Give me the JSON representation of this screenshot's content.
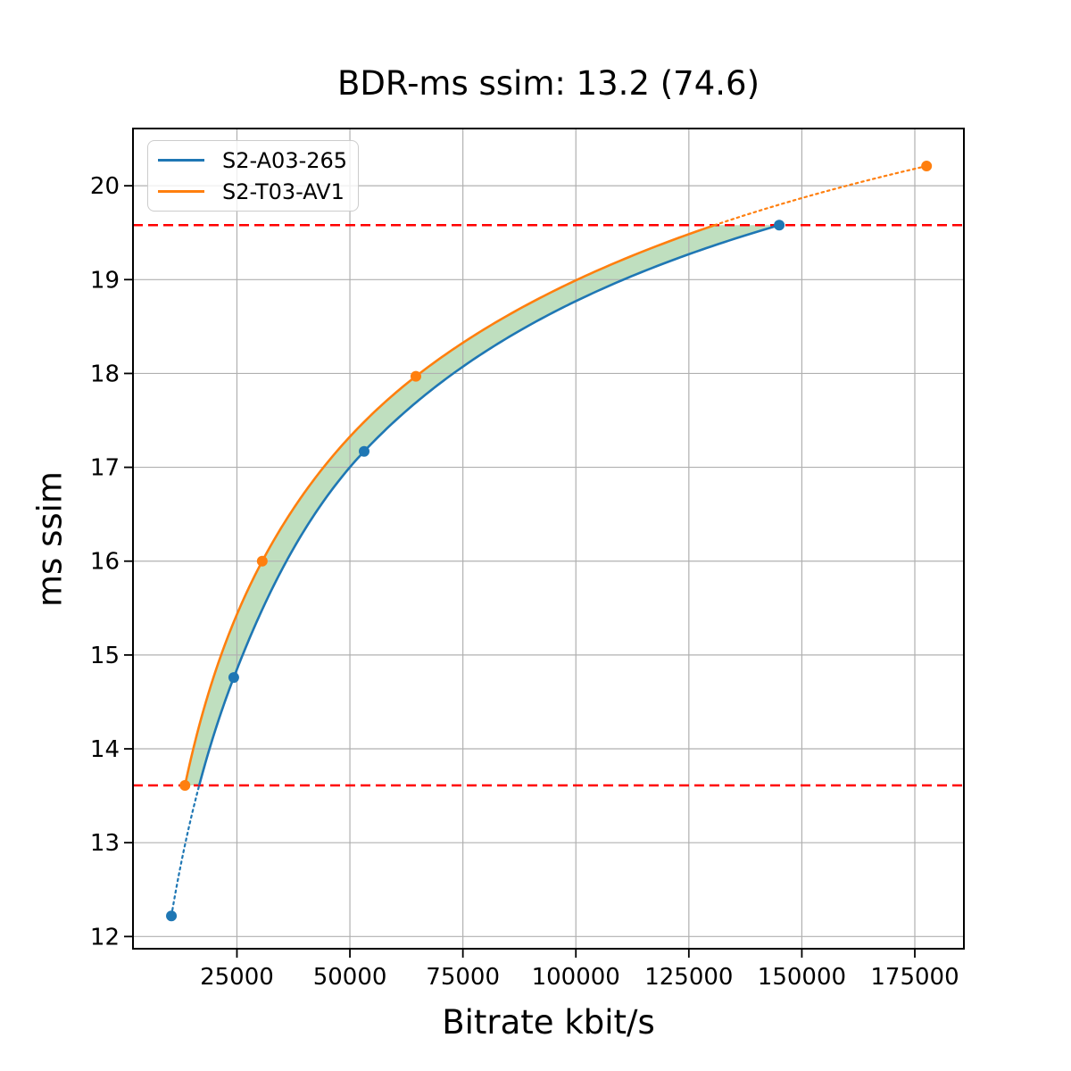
{
  "title": "BDR-ms ssim: 13.2 (74.6)",
  "chart_data": {
    "type": "line",
    "title": "BDR-ms ssim: 13.2 (74.6)",
    "xlabel": "Bitrate kbit/s",
    "ylabel": "ms ssim",
    "xlim": [
      2000,
      185860
    ],
    "ylim": [
      11.87,
      20.61
    ],
    "x_ticks": [
      25000,
      50000,
      75000,
      100000,
      125000,
      150000,
      175000
    ],
    "y_ticks": [
      12,
      13,
      14,
      15,
      16,
      17,
      18,
      19,
      20
    ],
    "grid": true,
    "grid_color": "#b0b0b0",
    "legend_position": "upper left",
    "series": [
      {
        "name": "S2-A03-265",
        "color": "#1f77b4",
        "x": [
          10500,
          24300,
          53150,
          145000
        ],
        "y": [
          12.22,
          14.76,
          17.17,
          19.58
        ]
      },
      {
        "name": "S2-T03-AV1",
        "color": "#ff7f0e",
        "x": [
          13500,
          30600,
          64600,
          177600
        ],
        "y": [
          13.61,
          16.0,
          17.97,
          20.21
        ]
      }
    ],
    "threshold_lines": {
      "color": "#ff0000",
      "style": "dashed",
      "y_values": [
        13.61,
        19.58
      ]
    },
    "shaded_region": {
      "color": "#008000",
      "opacity": 0.25
    },
    "interpolation": "pchip-log-x",
    "solid_y_range": [
      13.61,
      19.58
    ]
  }
}
